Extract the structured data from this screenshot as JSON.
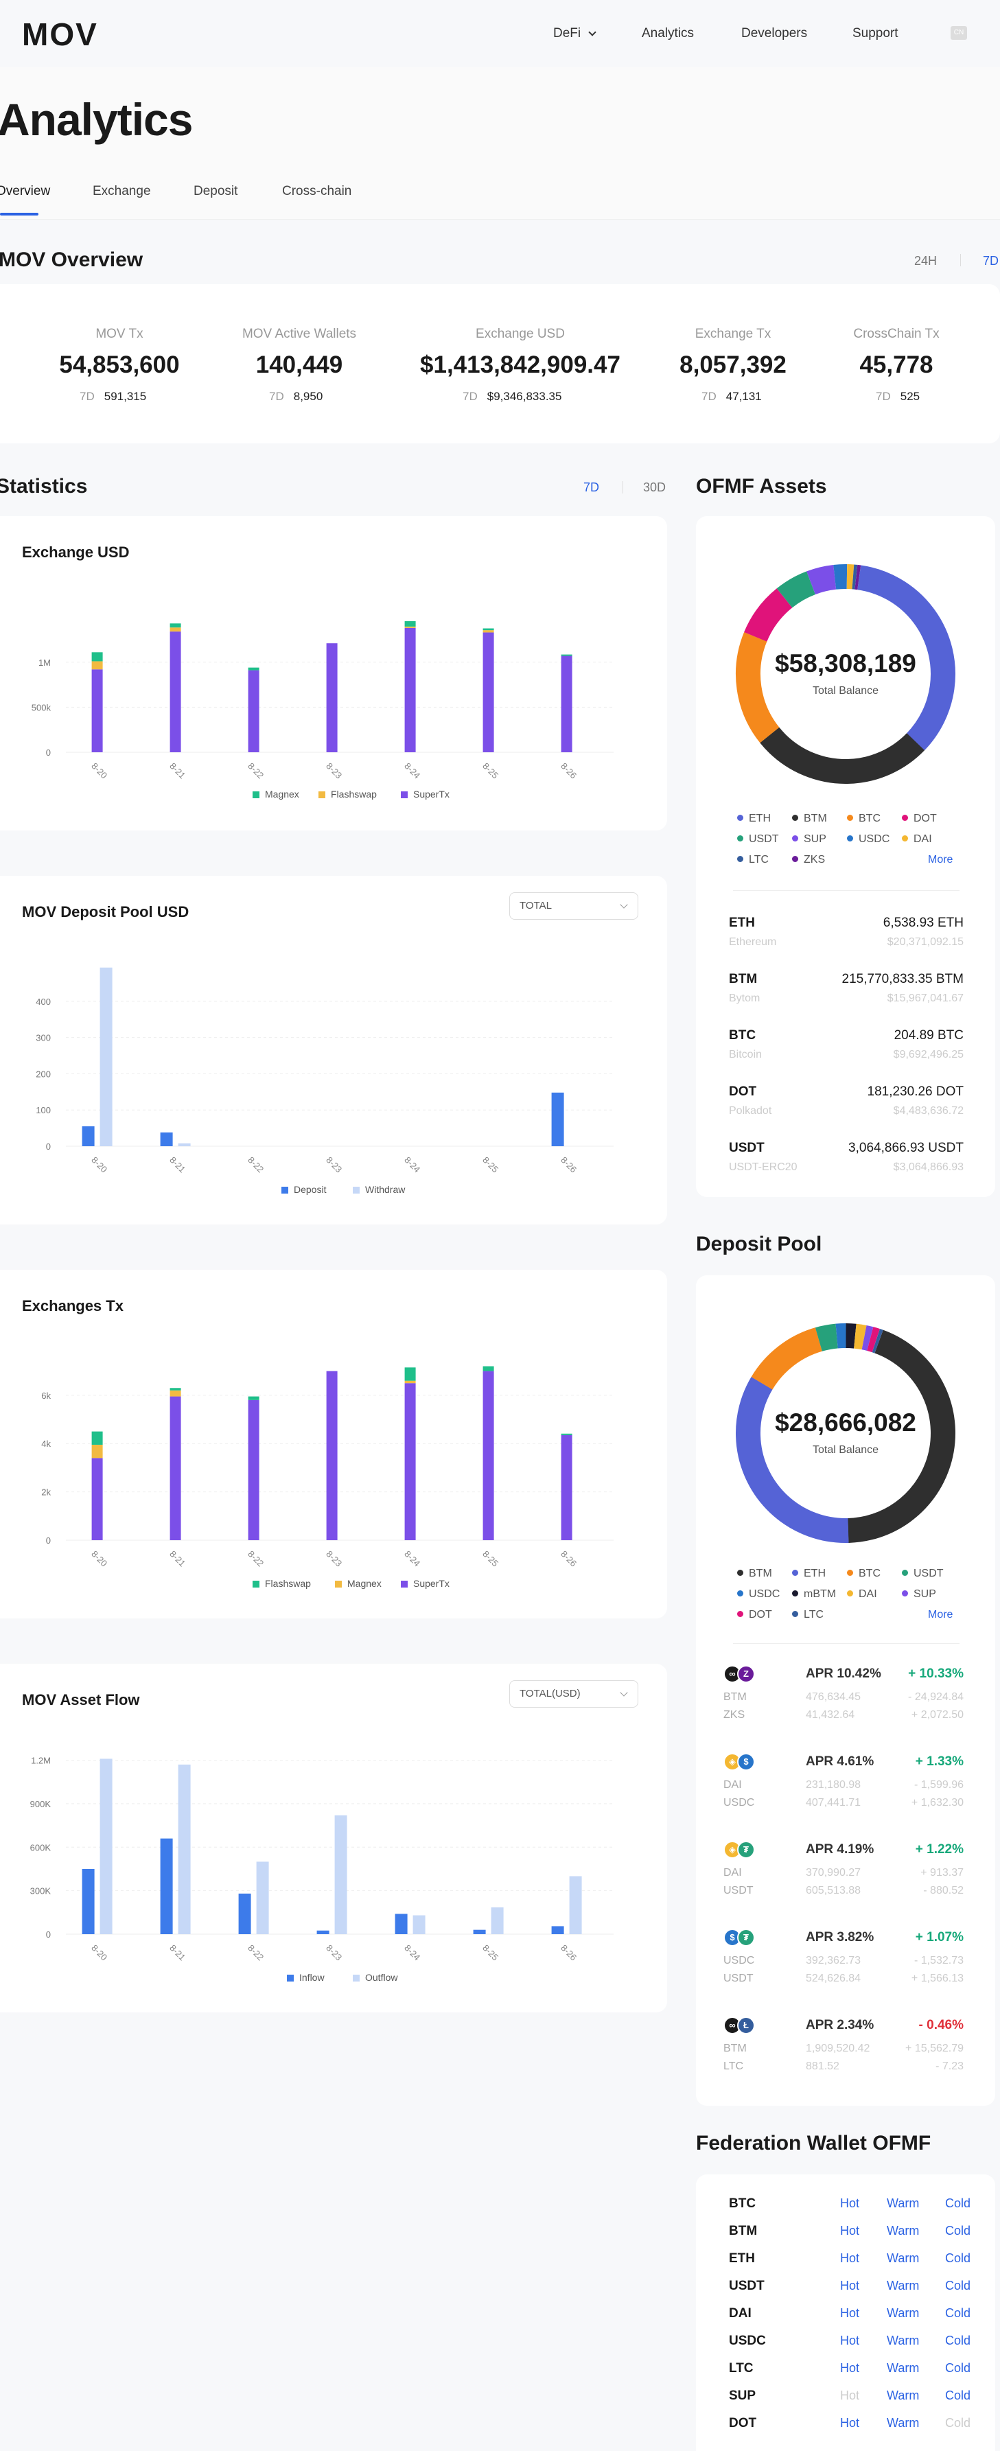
{
  "nav": {
    "logo": "MOV",
    "items": [
      "DeFi",
      "Analytics",
      "Developers",
      "Support"
    ],
    "lang": "CN"
  },
  "page_title": "Analytics",
  "tabs": [
    "Overview",
    "Exchange",
    "Deposit",
    "Cross-chain"
  ],
  "overview": {
    "title": "MOV Overview",
    "ranges": [
      "24H",
      "7D"
    ],
    "stats": [
      {
        "label": "MOV Tx",
        "value": "54,853,600",
        "sub_label": "7D",
        "sub_value": "591,315"
      },
      {
        "label": "MOV Active Wallets",
        "value": "140,449",
        "sub_label": "7D",
        "sub_value": "8,950"
      },
      {
        "label": "Exchange USD",
        "value": "$1,413,842,909.47",
        "sub_label": "7D",
        "sub_value": "$9,346,833.35"
      },
      {
        "label": "Exchange Tx",
        "value": "8,057,392",
        "sub_label": "7D",
        "sub_value": "47,131"
      },
      {
        "label": "CrossChain Tx",
        "value": "45,778",
        "sub_label": "7D",
        "sub_value": "525"
      }
    ]
  },
  "statistics": {
    "title": "Statistics",
    "ranges": [
      "7D",
      "30D"
    ]
  },
  "chart_data": [
    {
      "type": "bar",
      "title": "Exchange USD",
      "categories": [
        "8-20",
        "8-21",
        "8-22",
        "8-23",
        "8-24",
        "8-25",
        "8-26"
      ],
      "stacked": true,
      "yticks": [
        "0",
        "500k",
        "1M"
      ],
      "ylim": [
        0,
        1600000
      ],
      "series": [
        {
          "name": "SuperTx",
          "color": "#7b4fe8",
          "values": [
            920000,
            1340000,
            910000,
            1210000,
            1380000,
            1330000,
            1070000
          ]
        },
        {
          "name": "Flashswap",
          "color": "#f2ba41",
          "values": [
            90000,
            45000,
            0,
            0,
            15000,
            25000,
            0
          ]
        },
        {
          "name": "Magnex",
          "color": "#1fbf8a",
          "values": [
            100000,
            45000,
            30000,
            0,
            60000,
            20000,
            15000
          ]
        }
      ],
      "legend": [
        "Magnex",
        "Flashswap",
        "SuperTx"
      ]
    },
    {
      "type": "bar",
      "title": "MOV Deposit Pool USD",
      "select": "TOTAL",
      "categories": [
        "8-20",
        "8-21",
        "8-22",
        "8-23",
        "8-24",
        "8-25",
        "8-26"
      ],
      "yticks": [
        "0",
        "100",
        "200",
        "300",
        "400"
      ],
      "ylim": [
        0,
        500
      ],
      "series": [
        {
          "name": "Deposit",
          "color": "#3d7bea",
          "values": [
            55,
            38,
            0,
            0,
            0,
            0,
            148
          ]
        },
        {
          "name": "Withdraw",
          "color": "#c6d8f7",
          "values": [
            493,
            8,
            0,
            0,
            0,
            0,
            0
          ]
        }
      ],
      "legend": [
        "Deposit",
        "Withdraw"
      ]
    },
    {
      "type": "bar",
      "title": "Exchanges Tx",
      "categories": [
        "8-20",
        "8-21",
        "8-22",
        "8-23",
        "8-24",
        "8-25",
        "8-26"
      ],
      "stacked": true,
      "yticks": [
        "0",
        "2k",
        "4k",
        "6k"
      ],
      "ylim": [
        0,
        7500
      ],
      "series": [
        {
          "name": "SuperTx",
          "color": "#7b4fe8",
          "values": [
            3400,
            5950,
            5800,
            7000,
            6500,
            7000,
            4350
          ]
        },
        {
          "name": "Magnex",
          "color": "#f2ba41",
          "values": [
            550,
            250,
            0,
            0,
            100,
            0,
            0
          ]
        },
        {
          "name": "Flashswap",
          "color": "#1fbf8a",
          "values": [
            550,
            100,
            150,
            0,
            550,
            200,
            60
          ]
        }
      ],
      "legend": [
        "Flashswap",
        "Magnex",
        "SuperTx"
      ]
    },
    {
      "type": "bar",
      "title": "MOV Asset Flow",
      "select": "TOTAL(USD)",
      "categories": [
        "8-20",
        "8-21",
        "8-22",
        "8-23",
        "8-24",
        "8-25",
        "8-26"
      ],
      "yticks": [
        "0",
        "300K",
        "600K",
        "900K",
        "1.2M"
      ],
      "ylim": [
        0,
        1250000
      ],
      "series": [
        {
          "name": "Inflow",
          "color": "#3d7bea",
          "values": [
            450000,
            660000,
            280000,
            25000,
            140000,
            30000,
            55000
          ]
        },
        {
          "name": "Outflow",
          "color": "#c6d8f7",
          "values": [
            1210000,
            1170000,
            500000,
            820000,
            130000,
            185000,
            400000
          ]
        }
      ],
      "legend": [
        "Inflow",
        "Outflow"
      ]
    },
    {
      "type": "pie",
      "title": "OFMF Assets",
      "center_value": "$58,308,189",
      "center_label": "Total Balance",
      "slices": [
        {
          "name": "ETH",
          "color": "#5563d6",
          "value": 35
        },
        {
          "name": "BTM",
          "color": "#2f2f2f",
          "value": 27
        },
        {
          "name": "BTC",
          "color": "#f5891c",
          "value": 17
        },
        {
          "name": "DOT",
          "color": "#e0137a",
          "value": 8
        },
        {
          "name": "USDT",
          "color": "#26a17b",
          "value": 5
        },
        {
          "name": "SUP",
          "color": "#7b4fe8",
          "value": 4
        },
        {
          "name": "USDC",
          "color": "#2775ca",
          "value": 2
        },
        {
          "name": "DAI",
          "color": "#f4b731",
          "value": 1
        },
        {
          "name": "LTC",
          "color": "#345d9d",
          "value": 0.5
        },
        {
          "name": "ZKS",
          "color": "#6a1b9a",
          "value": 0.5
        }
      ]
    },
    {
      "type": "pie",
      "title": "Deposit Pool",
      "center_value": "$28,666,082",
      "center_label": "Total Balance",
      "slices": [
        {
          "name": "BTM",
          "color": "#2f2f2f",
          "value": 44
        },
        {
          "name": "ETH",
          "color": "#5563d6",
          "value": 34
        },
        {
          "name": "BTC",
          "color": "#f5891c",
          "value": 12
        },
        {
          "name": "USDT",
          "color": "#26a17b",
          "value": 3
        },
        {
          "name": "USDC",
          "color": "#2775ca",
          "value": 1.5
        },
        {
          "name": "mBTM",
          "color": "#1a1a2e",
          "value": 1.5
        },
        {
          "name": "DAI",
          "color": "#f4b731",
          "value": 1.5
        },
        {
          "name": "SUP",
          "color": "#7b4fe8",
          "value": 1
        },
        {
          "name": "DOT",
          "color": "#e0137a",
          "value": 1
        },
        {
          "name": "LTC",
          "color": "#345d9d",
          "value": 0.5
        }
      ]
    }
  ],
  "ofmf": {
    "title": "OFMF Assets",
    "legend": [
      {
        "name": "ETH",
        "color": "#5563d6"
      },
      {
        "name": "BTM",
        "color": "#2f2f2f"
      },
      {
        "name": "BTC",
        "color": "#f5891c"
      },
      {
        "name": "DOT",
        "color": "#e0137a"
      },
      {
        "name": "USDT",
        "color": "#26a17b"
      },
      {
        "name": "SUP",
        "color": "#7b4fe8"
      },
      {
        "name": "USDC",
        "color": "#2775ca"
      },
      {
        "name": "DAI",
        "color": "#f4b731"
      },
      {
        "name": "LTC",
        "color": "#345d9d"
      },
      {
        "name": "ZKS",
        "color": "#6a1b9a"
      }
    ],
    "more": "More",
    "assets": [
      {
        "symbol": "ETH",
        "name": "Ethereum",
        "amount": "6,538.93 ETH",
        "usd": "$20,371,092.15"
      },
      {
        "symbol": "BTM",
        "name": "Bytom",
        "amount": "215,770,833.35 BTM",
        "usd": "$15,967,041.67"
      },
      {
        "symbol": "BTC",
        "name": "Bitcoin",
        "amount": "204.89 BTC",
        "usd": "$9,692,496.25"
      },
      {
        "symbol": "DOT",
        "name": "Polkadot",
        "amount": "181,230.26 DOT",
        "usd": "$4,483,636.72"
      },
      {
        "symbol": "USDT",
        "name": "USDT-ERC20",
        "amount": "3,064,866.93 USDT",
        "usd": "$3,064,866.93"
      }
    ]
  },
  "deposit_pool": {
    "title": "Deposit Pool",
    "legend": [
      {
        "name": "BTM",
        "color": "#2f2f2f"
      },
      {
        "name": "ETH",
        "color": "#5563d6"
      },
      {
        "name": "BTC",
        "color": "#f5891c"
      },
      {
        "name": "USDT",
        "color": "#26a17b"
      },
      {
        "name": "USDC",
        "color": "#2775ca"
      },
      {
        "name": "mBTM",
        "color": "#1a1a2e"
      },
      {
        "name": "DAI",
        "color": "#f4b731"
      },
      {
        "name": "SUP",
        "color": "#7b4fe8"
      },
      {
        "name": "DOT",
        "color": "#e0137a"
      },
      {
        "name": "LTC",
        "color": "#345d9d"
      }
    ],
    "more": "More",
    "pairs": [
      {
        "apr": "APR 10.42%",
        "change": "+ 10.33%",
        "dir": "up",
        "c1": "#1a1a1a",
        "c2": "#6a1b9a",
        "g1": "∞",
        "g2": "Z",
        "a": "BTM",
        "b": "ZKS",
        "av": "476,634.45",
        "bv": "41,432.64",
        "ad": "- 24,924.84",
        "bd": "+ 2,072.50"
      },
      {
        "apr": "APR 4.61%",
        "change": "+ 1.33%",
        "dir": "up",
        "c1": "#f4b731",
        "c2": "#2775ca",
        "g1": "◈",
        "g2": "$",
        "a": "DAI",
        "b": "USDC",
        "av": "231,180.98",
        "bv": "407,441.71",
        "ad": "- 1,599.96",
        "bd": "+ 1,632.30"
      },
      {
        "apr": "APR 4.19%",
        "change": "+ 1.22%",
        "dir": "up",
        "c1": "#f4b731",
        "c2": "#26a17b",
        "g1": "◈",
        "g2": "₮",
        "a": "DAI",
        "b": "USDT",
        "av": "370,990.27",
        "bv": "605,513.88",
        "ad": "+ 913.37",
        "bd": "- 880.52"
      },
      {
        "apr": "APR 3.82%",
        "change": "+ 1.07%",
        "dir": "up",
        "c1": "#2775ca",
        "c2": "#26a17b",
        "g1": "$",
        "g2": "₮",
        "a": "USDC",
        "b": "USDT",
        "av": "392,362.73",
        "bv": "524,626.84",
        "ad": "- 1,532.73",
        "bd": "+ 1,566.13"
      },
      {
        "apr": "APR 2.34%",
        "change": "- 0.46%",
        "dir": "down",
        "c1": "#1a1a1a",
        "c2": "#345d9d",
        "g1": "∞",
        "g2": "Ł",
        "a": "BTM",
        "b": "LTC",
        "av": "1,909,520.42",
        "bv": "881.52",
        "ad": "+ 15,562.79",
        "bd": "- 7.23"
      }
    ]
  },
  "federation": {
    "title": "Federation Wallet OFMF",
    "rows": [
      {
        "coin": "BTC",
        "hot": "Hot",
        "warm": "Warm",
        "cold": "Cold",
        "hot_on": true,
        "cold_on": true
      },
      {
        "coin": "BTM",
        "hot": "Hot",
        "warm": "Warm",
        "cold": "Cold",
        "hot_on": true,
        "cold_on": true
      },
      {
        "coin": "ETH",
        "hot": "Hot",
        "warm": "Warm",
        "cold": "Cold",
        "hot_on": true,
        "cold_on": true
      },
      {
        "coin": "USDT",
        "hot": "Hot",
        "warm": "Warm",
        "cold": "Cold",
        "hot_on": true,
        "cold_on": true
      },
      {
        "coin": "DAI",
        "hot": "Hot",
        "warm": "Warm",
        "cold": "Cold",
        "hot_on": true,
        "cold_on": true
      },
      {
        "coin": "USDC",
        "hot": "Hot",
        "warm": "Warm",
        "cold": "Cold",
        "hot_on": true,
        "cold_on": true
      },
      {
        "coin": "LTC",
        "hot": "Hot",
        "warm": "Warm",
        "cold": "Cold",
        "hot_on": true,
        "cold_on": true
      },
      {
        "coin": "SUP",
        "hot": "Hot",
        "warm": "Warm",
        "cold": "Cold",
        "hot_on": false,
        "cold_on": true
      },
      {
        "coin": "DOT",
        "hot": "Hot",
        "warm": "Warm",
        "cold": "Cold",
        "hot_on": true,
        "cold_on": false
      }
    ]
  }
}
